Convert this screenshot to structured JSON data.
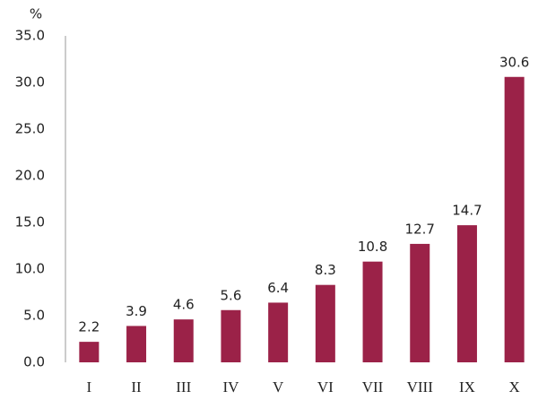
{
  "chart_data": {
    "type": "bar",
    "y_axis_label": "%",
    "categories": [
      "I",
      "II",
      "III",
      "IV",
      "V",
      "VI",
      "VII",
      "VIII",
      "IX",
      "X"
    ],
    "values": [
      2.2,
      3.9,
      4.6,
      5.6,
      6.4,
      8.3,
      10.8,
      12.7,
      14.7,
      30.6
    ],
    "color": "#9b2248",
    "ylim": [
      0,
      35
    ],
    "yticks": [
      {
        "value": 0,
        "label": "0.0"
      },
      {
        "value": 5,
        "label": "5.0"
      },
      {
        "value": 10,
        "label": "10.0"
      },
      {
        "value": 15,
        "label": "15.0"
      },
      {
        "value": 20,
        "label": "20.0"
      },
      {
        "value": 25,
        "label": "25.0"
      },
      {
        "value": 30,
        "label": "30.0"
      },
      {
        "value": 35,
        "label": "35.0"
      }
    ],
    "grid": false
  }
}
